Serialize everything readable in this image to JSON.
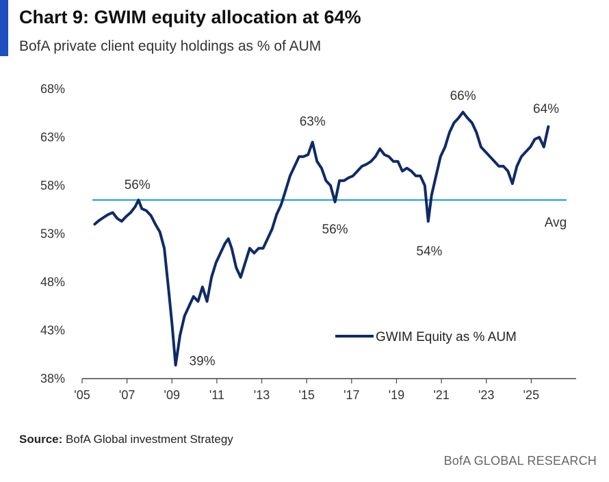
{
  "header": {
    "title": "Chart 9: GWIM equity allocation at 64%",
    "subtitle": "BofA private client equity holdings as % of AUM"
  },
  "footer": {
    "source_label": "Source:",
    "source_text": "BofA Global investment Strategy",
    "brand": "BofA GLOBAL RESEARCH"
  },
  "colors": {
    "series": "#0f2a66",
    "average": "#3aa6d6",
    "accent": "#1f4fbf"
  },
  "chart_data": {
    "type": "line",
    "title": "Chart 9: GWIM equity allocation at 64%",
    "subtitle": "BofA private client equity holdings as % of AUM",
    "xlabel": "",
    "ylabel": "",
    "ylim": [
      38,
      68
    ],
    "xlim": [
      2005,
      2027
    ],
    "y_ticks": [
      "38%",
      "43%",
      "48%",
      "53%",
      "58%",
      "63%",
      "68%"
    ],
    "y_tick_values": [
      38,
      43,
      48,
      53,
      58,
      63,
      68
    ],
    "x_ticks": [
      "'05",
      "'07",
      "'09",
      "'11",
      "'13",
      "'15",
      "'17",
      "'19",
      "'21",
      "'23",
      "'25"
    ],
    "x_tick_values": [
      2005,
      2007,
      2009,
      2011,
      2013,
      2015,
      2017,
      2019,
      2021,
      2023,
      2025
    ],
    "grid": false,
    "legend": {
      "position": "bottom-right",
      "entries": [
        "GWIM Equity as % AUM"
      ]
    },
    "average": {
      "value": 56.5,
      "label": "Avg"
    },
    "annotations": [
      {
        "text": "56%",
        "x": 2007.4,
        "y": 56.5
      },
      {
        "text": "39%",
        "x": 2009.1,
        "y": 39.4
      },
      {
        "text": "63%",
        "x": 2015.2,
        "y": 62.5
      },
      {
        "text": "56%",
        "x": 2016.2,
        "y": 56.3
      },
      {
        "text": "54%",
        "x": 2020.4,
        "y": 54.3
      },
      {
        "text": "66%",
        "x": 2021.9,
        "y": 65.6
      },
      {
        "text": "64%",
        "x": 2025.6,
        "y": 64.1
      }
    ],
    "series": [
      {
        "name": "GWIM Equity as % AUM",
        "x": [
          2005.5,
          2005.7,
          2005.9,
          2006.1,
          2006.3,
          2006.5,
          2006.7,
          2006.9,
          2007.1,
          2007.3,
          2007.45,
          2007.6,
          2007.8,
          2008.0,
          2008.2,
          2008.4,
          2008.6,
          2008.8,
          2008.95,
          2009.1,
          2009.3,
          2009.5,
          2009.7,
          2009.9,
          2010.1,
          2010.3,
          2010.5,
          2010.7,
          2010.9,
          2011.1,
          2011.3,
          2011.45,
          2011.6,
          2011.8,
          2012.0,
          2012.2,
          2012.4,
          2012.6,
          2012.8,
          2013.0,
          2013.2,
          2013.4,
          2013.6,
          2013.8,
          2014.0,
          2014.2,
          2014.4,
          2014.6,
          2014.8,
          2015.0,
          2015.2,
          2015.4,
          2015.6,
          2015.8,
          2016.0,
          2016.2,
          2016.4,
          2016.6,
          2016.8,
          2017.0,
          2017.2,
          2017.4,
          2017.6,
          2017.8,
          2018.0,
          2018.2,
          2018.4,
          2018.6,
          2018.8,
          2019.0,
          2019.2,
          2019.4,
          2019.6,
          2019.8,
          2020.0,
          2020.2,
          2020.35,
          2020.5,
          2020.7,
          2020.9,
          2021.1,
          2021.3,
          2021.5,
          2021.7,
          2021.9,
          2022.1,
          2022.3,
          2022.5,
          2022.7,
          2022.9,
          2023.1,
          2023.3,
          2023.5,
          2023.7,
          2023.9,
          2024.1,
          2024.3,
          2024.5,
          2024.7,
          2024.9,
          2025.1,
          2025.3,
          2025.5,
          2025.7
        ],
        "values": [
          54.0,
          54.4,
          54.7,
          55.0,
          55.2,
          54.6,
          54.3,
          54.8,
          55.2,
          55.8,
          56.5,
          55.6,
          55.4,
          54.9,
          54.0,
          53.2,
          51.5,
          47.0,
          43.5,
          39.4,
          42.5,
          44.5,
          45.5,
          46.5,
          46.0,
          47.5,
          46.0,
          48.5,
          50.0,
          51.0,
          52.0,
          52.5,
          51.5,
          49.5,
          48.5,
          50.0,
          51.5,
          51.0,
          51.5,
          51.5,
          52.5,
          53.5,
          55.0,
          56.0,
          57.5,
          59.0,
          60.0,
          61.0,
          61.0,
          61.2,
          62.5,
          60.5,
          59.8,
          58.5,
          58.0,
          56.3,
          58.5,
          58.5,
          58.8,
          59.0,
          59.5,
          60.0,
          60.2,
          60.5,
          61.0,
          61.8,
          61.2,
          61.0,
          60.5,
          60.5,
          59.5,
          59.8,
          59.5,
          59.0,
          59.0,
          58.0,
          54.3,
          57.0,
          59.0,
          61.0,
          62.0,
          63.5,
          64.5,
          65.0,
          65.6,
          65.0,
          64.5,
          63.5,
          62.0,
          61.5,
          61.0,
          60.5,
          60.0,
          60.0,
          59.5,
          58.2,
          60.0,
          61.0,
          61.5,
          62.0,
          62.8,
          63.0,
          62.0,
          64.1
        ]
      }
    ]
  }
}
